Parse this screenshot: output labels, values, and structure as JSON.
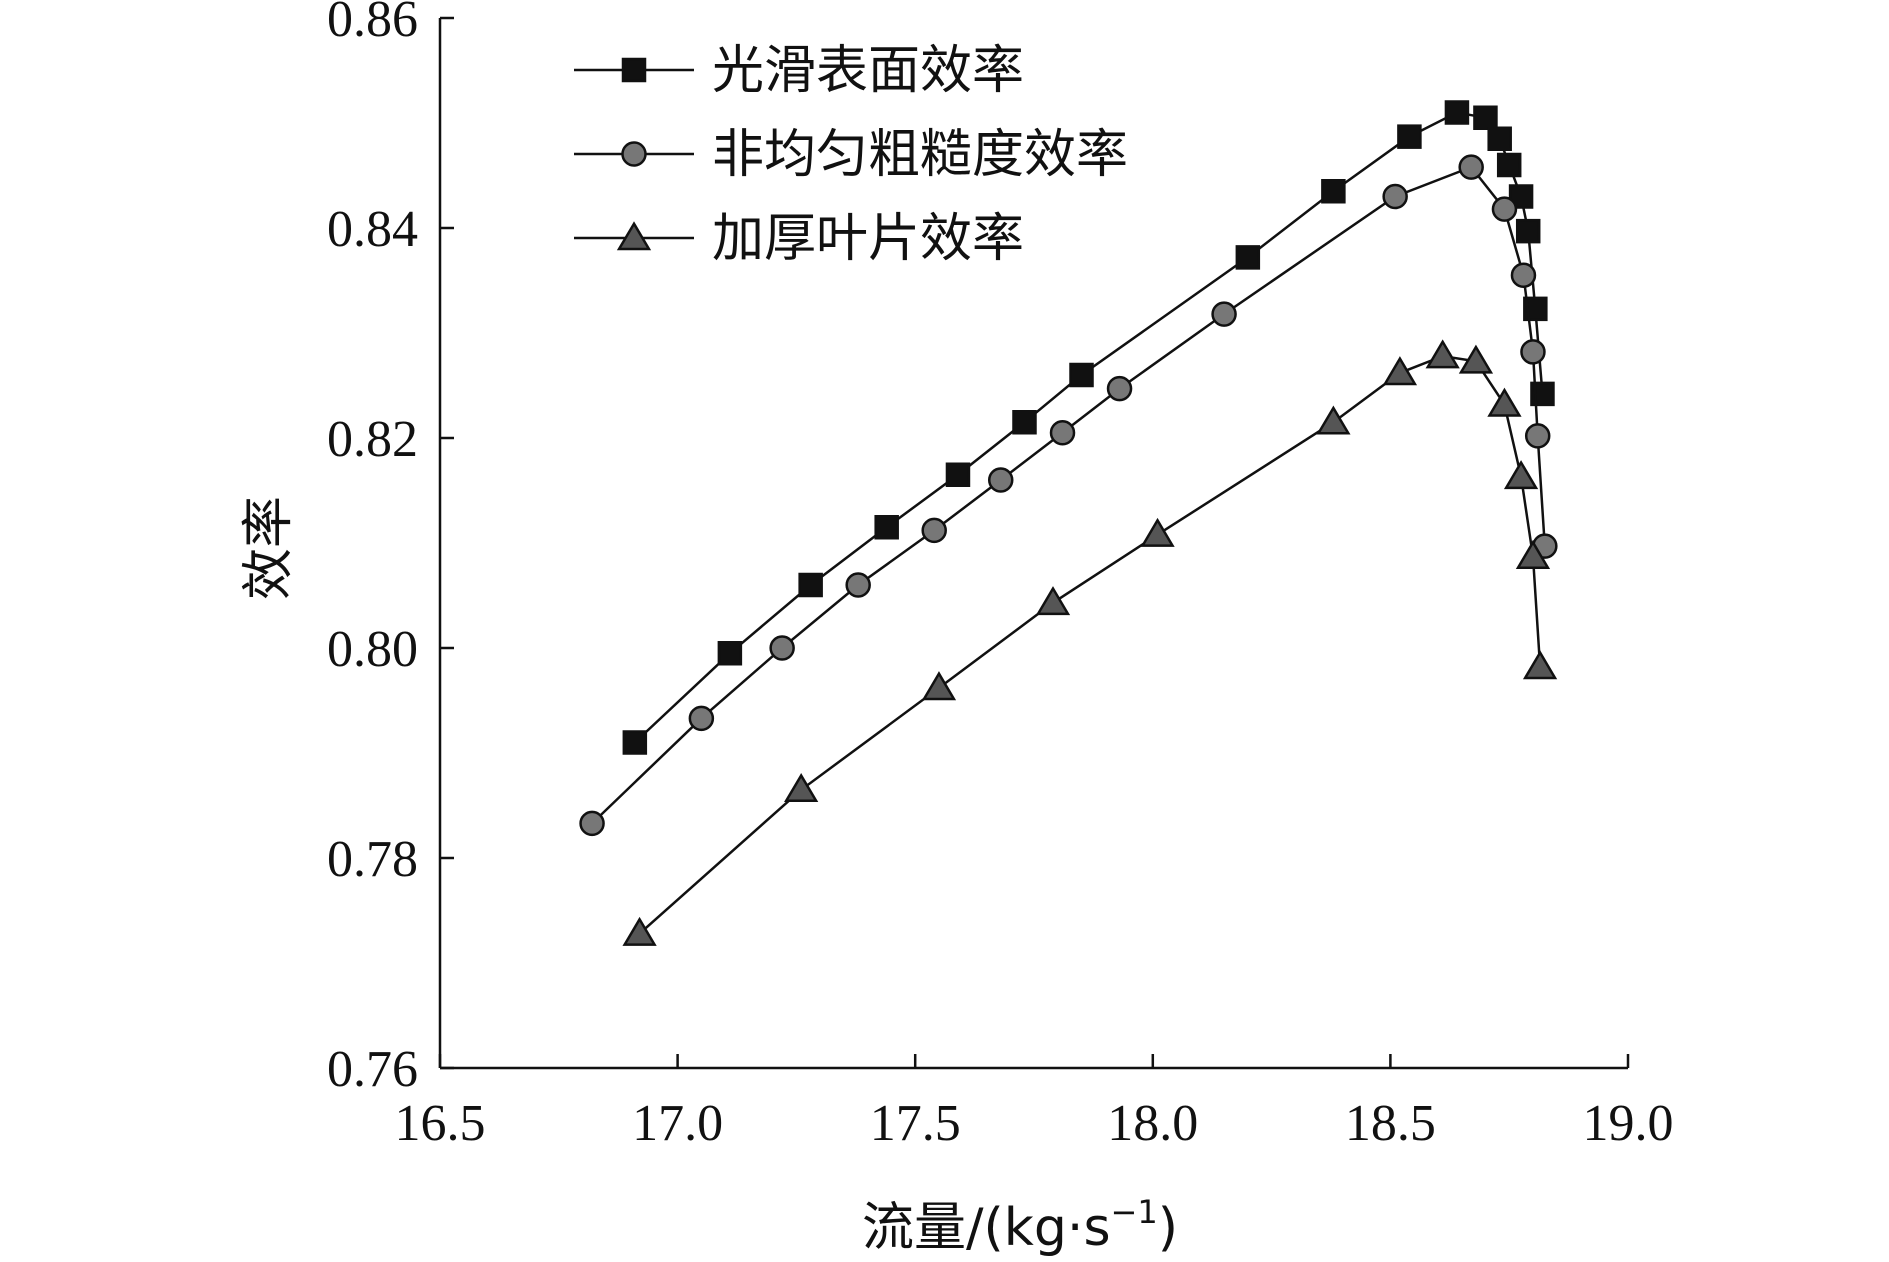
{
  "chart_data": {
    "type": "line",
    "title": "",
    "xlabel": "流量/(kg·s",
    "xlabel_sup": "−1",
    "xlabel_close": ")",
    "ylabel": "效率",
    "xlim": [
      16.5,
      19.0
    ],
    "ylim": [
      0.76,
      0.86
    ],
    "xticks": [
      "16.5",
      "17.0",
      "17.5",
      "18.0",
      "18.5",
      "19.0"
    ],
    "yticks": [
      "0.76",
      "0.78",
      "0.80",
      "0.82",
      "0.84",
      "0.86"
    ],
    "grid": false,
    "legend_position": "top-left",
    "series": [
      {
        "name": "光滑表面效率",
        "marker": "square",
        "color": "#111111",
        "x": [
          16.91,
          17.11,
          17.28,
          17.44,
          17.59,
          17.73,
          17.85,
          18.2,
          18.38,
          18.54,
          18.64,
          18.7,
          18.73,
          18.75,
          18.775,
          18.79,
          18.805,
          18.82
        ],
        "y": [
          0.791,
          0.7995,
          0.806,
          0.8115,
          0.8165,
          0.8215,
          0.826,
          0.8372,
          0.8435,
          0.8487,
          0.851,
          0.8505,
          0.8485,
          0.846,
          0.843,
          0.8397,
          0.8323,
          0.8242
        ]
      },
      {
        "name": "非均匀粗糙度效率",
        "marker": "circle",
        "color": "#777777",
        "x": [
          16.82,
          17.05,
          17.22,
          17.38,
          17.54,
          17.68,
          17.81,
          17.93,
          18.15,
          18.51,
          18.67,
          18.74,
          18.78,
          18.8,
          18.81,
          18.825
        ],
        "y": [
          0.7833,
          0.7933,
          0.8,
          0.806,
          0.8112,
          0.816,
          0.8205,
          0.8247,
          0.8318,
          0.843,
          0.8458,
          0.8418,
          0.8355,
          0.8282,
          0.8202,
          0.8097
        ]
      },
      {
        "name": "加厚叶片效率",
        "marker": "triangle",
        "color": "#555555",
        "x": [
          16.92,
          17.26,
          17.55,
          17.79,
          18.01,
          18.38,
          18.52,
          18.61,
          18.68,
          18.74,
          18.775,
          18.8,
          18.815
        ],
        "y": [
          0.7728,
          0.7865,
          0.7962,
          0.8043,
          0.8108,
          0.8215,
          0.8262,
          0.8278,
          0.8273,
          0.8232,
          0.8163,
          0.8087,
          0.7982
        ]
      }
    ]
  }
}
